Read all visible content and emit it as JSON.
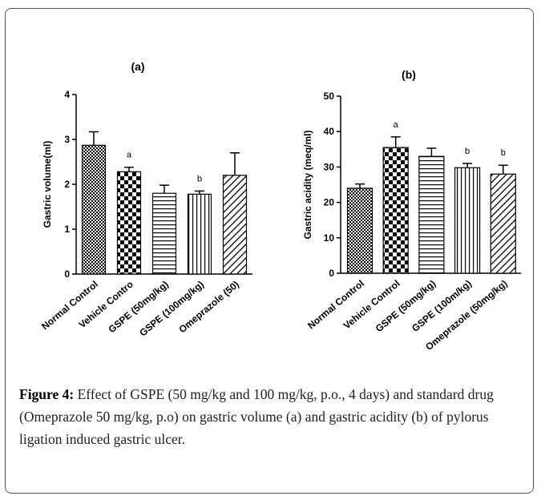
{
  "chart_data": [
    {
      "type": "bar",
      "title": "(a)",
      "ylabel": "Gastric volume(ml)",
      "categories": [
        "Normal Control",
        "Vehicle Contro",
        "GSPE (50mg/kg)",
        "GSPE (100mg/kg)",
        "Omeprazole (50)"
      ],
      "values": [
        2.87,
        2.28,
        1.8,
        1.78,
        2.2
      ],
      "errors": [
        0.3,
        0.1,
        0.18,
        0.07,
        0.5
      ],
      "letters": [
        null,
        "a",
        null,
        "b",
        null
      ],
      "patterns": [
        "crosshatch",
        "checker",
        "horizontal",
        "vertical",
        "diagonal"
      ],
      "ylim": [
        0,
        4
      ],
      "yticks": [
        0,
        1,
        2,
        3,
        4
      ]
    },
    {
      "type": "bar",
      "title": "(b)",
      "ylabel": "Gastric acidity (meq/ml)",
      "categories": [
        "Normal Control",
        "Vehicle Control",
        "GSPE (50mg/kg)",
        "GSPE (100m/kg)",
        "Omeprazole (50mg/kg)"
      ],
      "values": [
        24,
        35.5,
        33,
        29.8,
        28
      ],
      "errors": [
        1.2,
        3,
        2.3,
        1.2,
        2.5
      ],
      "letters": [
        null,
        "a",
        null,
        "b",
        "b"
      ],
      "patterns": [
        "crosshatch",
        "checker",
        "horizontal",
        "vertical",
        "diagonal"
      ],
      "ylim": [
        0,
        50
      ],
      "yticks": [
        0,
        10,
        20,
        30,
        40,
        50
      ]
    }
  ],
  "caption": {
    "label": "Figure 4:",
    "text": "Effect of GSPE (50 mg/kg and 100 mg/kg, p.o., 4 days) and standard drug (Omeprazole 50 mg/kg, p.o) on gastric volume (a) and gastric acidity (b) of pylorus ligation induced gastric ulcer."
  }
}
